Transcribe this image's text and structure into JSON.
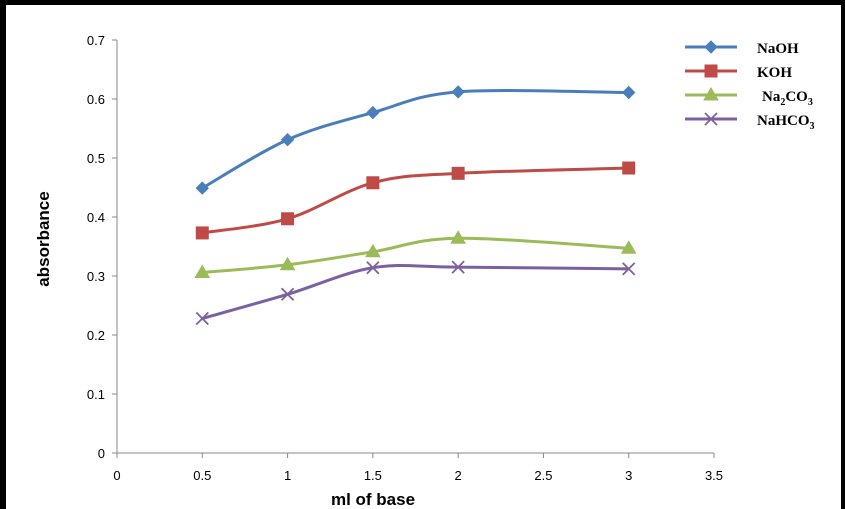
{
  "chart_data": {
    "type": "line",
    "xlabel": "ml of base",
    "ylabel": "absorbance",
    "xlim": [
      0,
      3.5
    ],
    "ylim": [
      0,
      0.7
    ],
    "x_ticks": [
      "0",
      "0.5",
      "1",
      "1.5",
      "2",
      "2.5",
      "3",
      "3.5"
    ],
    "y_ticks": [
      "0",
      "0.1",
      "0.2",
      "0.3",
      "0.4",
      "0.5",
      "0.6",
      "0.7"
    ],
    "grid": false,
    "smooth": true,
    "legend_position": "top-right",
    "x": [
      0.5,
      1,
      1.5,
      2,
      3
    ],
    "series": [
      {
        "name": "NaOH",
        "name_main": "NaOH",
        "name_sub": "",
        "name_after": "",
        "color": "#4A7EBB",
        "marker": "diamond",
        "values": [
          0.449,
          0.531,
          0.577,
          0.612,
          0.611
        ]
      },
      {
        "name": "KOH",
        "name_main": "KOH",
        "name_sub": "",
        "name_after": "",
        "color": "#BE4B48",
        "marker": "square",
        "values": [
          0.373,
          0.397,
          0.458,
          0.474,
          0.483
        ]
      },
      {
        "name": "Na2CO3",
        "name_main": "Na",
        "name_sub": "2",
        "name_after": "CO",
        "name_sub2": "3",
        "color": "#9BBB59",
        "marker": "triangle",
        "values": [
          0.306,
          0.319,
          0.341,
          0.364,
          0.347
        ]
      },
      {
        "name": "NaHCO3",
        "name_main": "NaHCO",
        "name_sub": "3",
        "name_after": "",
        "color": "#7D60A0",
        "marker": "x",
        "values": [
          0.228,
          0.269,
          0.314,
          0.315,
          0.312
        ]
      }
    ]
  }
}
